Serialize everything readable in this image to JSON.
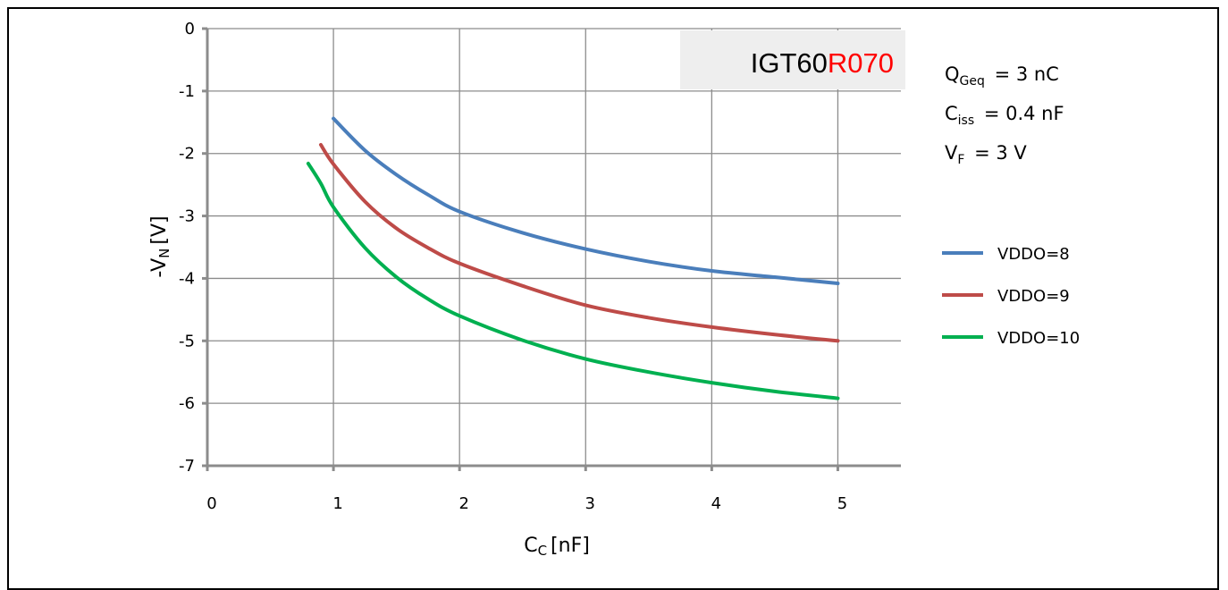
{
  "chart_data": {
    "type": "line",
    "xlabel": "C",
    "xlabel_sub": "C",
    "xlabel_unit": "[nF]",
    "ylabel": "-V",
    "ylabel_sub": "N",
    "ylabel_unit": "[V]",
    "xlim": [
      0,
      5.5
    ],
    "ylim": [
      -7,
      0
    ],
    "xticks": [
      0,
      1,
      2,
      3,
      4,
      5
    ],
    "yticks": [
      0,
      -1,
      -2,
      -3,
      -4,
      -5,
      -6,
      -7
    ],
    "grid": true,
    "legend_position": "right",
    "device_label": {
      "black": "IGT60",
      "red": "R070",
      "red_color": "#ff0000",
      "box_color": "#eeeeee"
    },
    "annotations": [
      {
        "main": "Q",
        "sub": "Geq",
        "rest": " = 3 nC"
      },
      {
        "main": "C",
        "sub": "iss",
        "rest": " = 0.4 nF"
      },
      {
        "main": "V",
        "sub": "F",
        "rest": " = 3 V"
      }
    ],
    "series": [
      {
        "name": "VDDO=8",
        "color": "#4a7ebb",
        "x": [
          1.0,
          1.25,
          1.5,
          1.75,
          2.0,
          2.5,
          3.0,
          3.5,
          4.0,
          4.5,
          5.0
        ],
        "y": [
          -1.44,
          -1.95,
          -2.34,
          -2.66,
          -2.93,
          -3.27,
          -3.53,
          -3.73,
          -3.88,
          -3.98,
          -4.08
        ]
      },
      {
        "name": "VDDO=9",
        "color": "#be4b48",
        "x": [
          0.9,
          1.0,
          1.25,
          1.5,
          1.75,
          2.0,
          2.5,
          3.0,
          3.5,
          4.0,
          4.5,
          5.0
        ],
        "y": [
          -1.86,
          -2.17,
          -2.77,
          -3.2,
          -3.51,
          -3.76,
          -4.12,
          -4.43,
          -4.63,
          -4.78,
          -4.9,
          -5.0
        ]
      },
      {
        "name": "VDDO=10",
        "color": "#00b050",
        "x": [
          0.8,
          0.9,
          1.0,
          1.25,
          1.5,
          1.75,
          2.0,
          2.5,
          3.0,
          3.5,
          4.0,
          4.5,
          5.0
        ],
        "y": [
          -2.16,
          -2.48,
          -2.86,
          -3.51,
          -3.98,
          -4.33,
          -4.6,
          -4.99,
          -5.29,
          -5.5,
          -5.67,
          -5.81,
          -5.92
        ]
      }
    ]
  }
}
